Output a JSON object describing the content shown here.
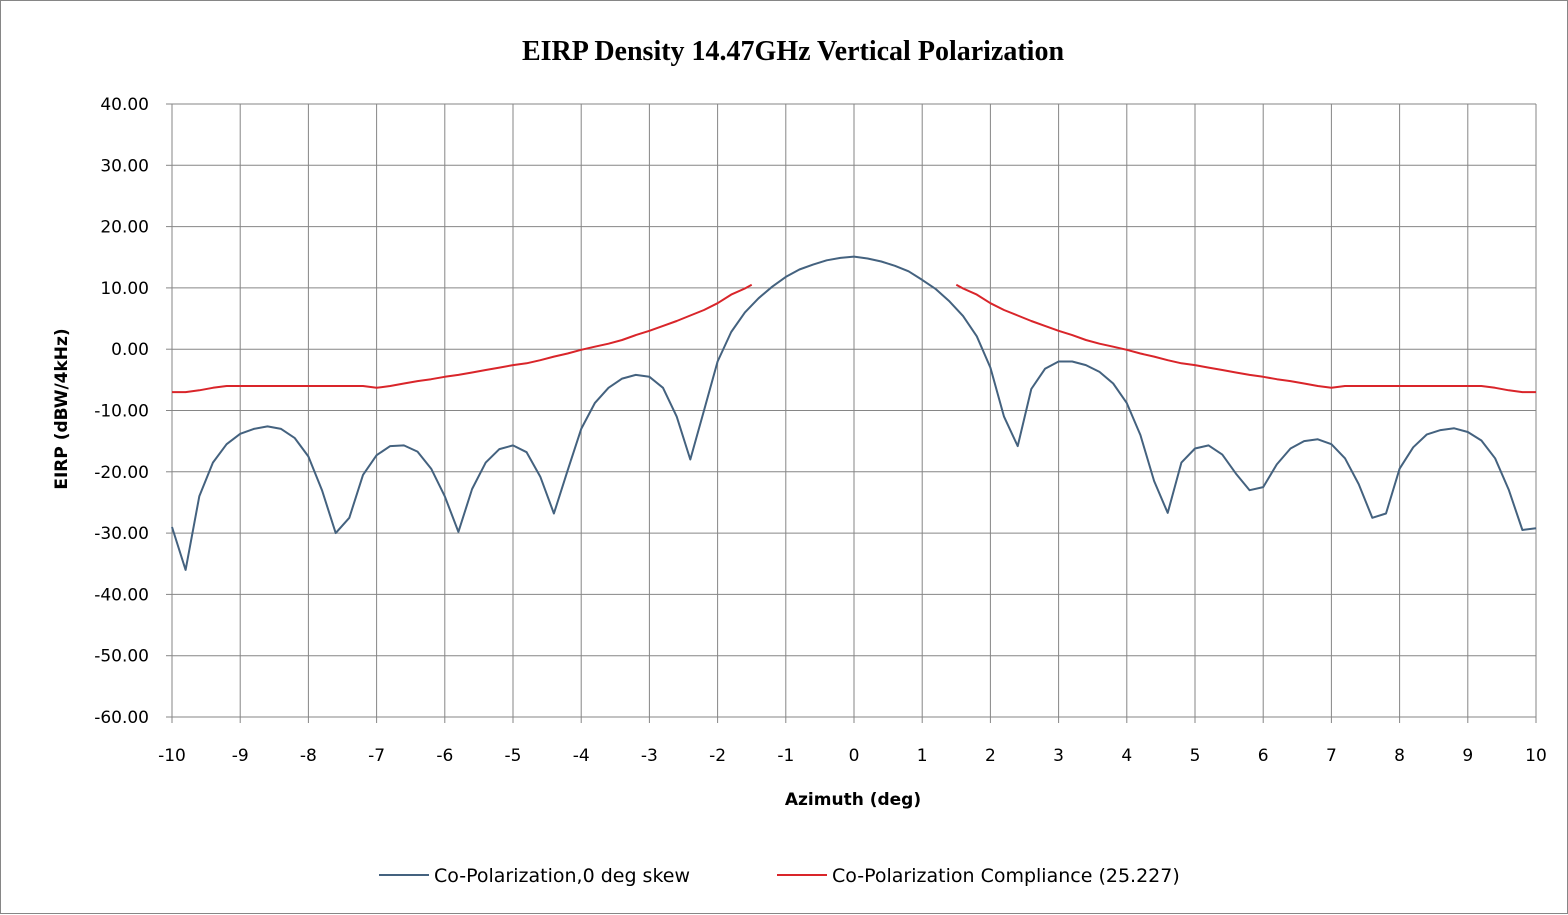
{
  "chart_data": {
    "type": "line",
    "title": "EIRP Density 14.47GHz Vertical Polarization",
    "xlabel": "Azimuth (deg)",
    "ylabel": "EIRP  (dBW/4kHz)",
    "xlim": [
      -10,
      10
    ],
    "ylim": [
      -60,
      40
    ],
    "x_ticks": [
      "-10",
      "-9",
      "-8",
      "-7",
      "-6",
      "-5",
      "-4",
      "-3",
      "-2",
      "-1",
      "0",
      "1",
      "2",
      "3",
      "4",
      "5",
      "6",
      "7",
      "8",
      "9",
      "10"
    ],
    "y_ticks": [
      "40.00",
      "30.00",
      "20.00",
      "10.00",
      "0.00",
      "-10.00",
      "-20.00",
      "-30.00",
      "-40.00",
      "-50.00",
      "-60.00"
    ],
    "grid": true,
    "legend_position": "bottom",
    "series": [
      {
        "name": "Co-Polarization,0 deg skew",
        "color": "#44627f",
        "points": [
          [
            -10.0,
            -29.0
          ],
          [
            -9.8,
            -36.0
          ],
          [
            -9.6,
            -24.0
          ],
          [
            -9.4,
            -18.5
          ],
          [
            -9.2,
            -15.5
          ],
          [
            -9.0,
            -13.8
          ],
          [
            -8.8,
            -13.0
          ],
          [
            -8.6,
            -12.6
          ],
          [
            -8.4,
            -13.0
          ],
          [
            -8.2,
            -14.5
          ],
          [
            -8.0,
            -17.5
          ],
          [
            -7.8,
            -23.0
          ],
          [
            -7.6,
            -30.0
          ],
          [
            -7.4,
            -27.5
          ],
          [
            -7.2,
            -20.5
          ],
          [
            -7.0,
            -17.3
          ],
          [
            -6.8,
            -15.8
          ],
          [
            -6.6,
            -15.7
          ],
          [
            -6.4,
            -16.7
          ],
          [
            -6.2,
            -19.5
          ],
          [
            -6.0,
            -24.0
          ],
          [
            -5.8,
            -29.8
          ],
          [
            -5.6,
            -22.8
          ],
          [
            -5.4,
            -18.5
          ],
          [
            -5.2,
            -16.3
          ],
          [
            -5.0,
            -15.7
          ],
          [
            -4.8,
            -16.8
          ],
          [
            -4.6,
            -20.8
          ],
          [
            -4.4,
            -26.8
          ],
          [
            -4.2,
            -19.8
          ],
          [
            -4.0,
            -13.0
          ],
          [
            -3.8,
            -8.8
          ],
          [
            -3.6,
            -6.3
          ],
          [
            -3.4,
            -4.8
          ],
          [
            -3.2,
            -4.2
          ],
          [
            -3.0,
            -4.5
          ],
          [
            -2.8,
            -6.3
          ],
          [
            -2.6,
            -11.0
          ],
          [
            -2.4,
            -18.0
          ],
          [
            -2.2,
            -10.0
          ],
          [
            -2.0,
            -2.0
          ],
          [
            -1.8,
            2.8
          ],
          [
            -1.6,
            6.0
          ],
          [
            -1.4,
            8.3
          ],
          [
            -1.2,
            10.2
          ],
          [
            -1.0,
            11.8
          ],
          [
            -0.8,
            13.0
          ],
          [
            -0.6,
            13.8
          ],
          [
            -0.4,
            14.5
          ],
          [
            -0.2,
            14.9
          ],
          [
            0.0,
            15.1
          ],
          [
            0.2,
            14.8
          ],
          [
            0.4,
            14.3
          ],
          [
            0.6,
            13.6
          ],
          [
            0.8,
            12.7
          ],
          [
            1.0,
            11.3
          ],
          [
            1.2,
            9.8
          ],
          [
            1.4,
            7.8
          ],
          [
            1.6,
            5.4
          ],
          [
            1.8,
            2.1
          ],
          [
            2.0,
            -3.0
          ],
          [
            2.2,
            -11.0
          ],
          [
            2.4,
            -15.8
          ],
          [
            2.6,
            -6.5
          ],
          [
            2.8,
            -3.2
          ],
          [
            3.0,
            -2.0
          ],
          [
            3.2,
            -2.0
          ],
          [
            3.4,
            -2.6
          ],
          [
            3.6,
            -3.7
          ],
          [
            3.8,
            -5.6
          ],
          [
            4.0,
            -8.8
          ],
          [
            4.2,
            -14.0
          ],
          [
            4.4,
            -21.5
          ],
          [
            4.6,
            -26.7
          ],
          [
            4.8,
            -18.5
          ],
          [
            5.0,
            -16.2
          ],
          [
            5.2,
            -15.7
          ],
          [
            5.4,
            -17.2
          ],
          [
            5.6,
            -20.3
          ],
          [
            5.8,
            -23.0
          ],
          [
            6.0,
            -22.5
          ],
          [
            6.2,
            -18.8
          ],
          [
            6.4,
            -16.2
          ],
          [
            6.6,
            -15.0
          ],
          [
            6.8,
            -14.7
          ],
          [
            7.0,
            -15.5
          ],
          [
            7.2,
            -17.8
          ],
          [
            7.4,
            -22.0
          ],
          [
            7.6,
            -27.5
          ],
          [
            7.8,
            -26.8
          ],
          [
            8.0,
            -19.5
          ],
          [
            8.2,
            -16.0
          ],
          [
            8.4,
            -13.9
          ],
          [
            8.6,
            -13.2
          ],
          [
            8.8,
            -12.9
          ],
          [
            9.0,
            -13.5
          ],
          [
            9.2,
            -14.9
          ],
          [
            9.4,
            -17.8
          ],
          [
            9.6,
            -22.9
          ],
          [
            9.8,
            -29.5
          ],
          [
            10.0,
            -29.2
          ]
        ]
      },
      {
        "name": "Co-Polarization Compliance (25.227)",
        "color": "#d9252a",
        "segments": [
          [
            [
              -10.0,
              -7.0
            ],
            [
              -9.8,
              -7.0
            ],
            [
              -9.6,
              -6.7
            ],
            [
              -9.4,
              -6.3
            ],
            [
              -9.2,
              -6.0
            ],
            [
              -9.0,
              -6.0
            ],
            [
              -8.0,
              -6.0
            ],
            [
              -7.2,
              -6.0
            ],
            [
              -7.0,
              -6.3
            ],
            [
              -6.8,
              -6.0
            ],
            [
              -6.6,
              -5.6
            ],
            [
              -6.4,
              -5.2
            ],
            [
              -6.2,
              -4.9
            ],
            [
              -6.0,
              -4.5
            ],
            [
              -5.8,
              -4.2
            ],
            [
              -5.6,
              -3.8
            ],
            [
              -5.4,
              -3.4
            ],
            [
              -5.2,
              -3.0
            ],
            [
              -5.0,
              -2.6
            ],
            [
              -4.8,
              -2.3
            ],
            [
              -4.6,
              -1.8
            ],
            [
              -4.4,
              -1.2
            ],
            [
              -4.2,
              -0.7
            ],
            [
              -4.0,
              -0.1
            ],
            [
              -3.8,
              0.4
            ],
            [
              -3.6,
              0.9
            ],
            [
              -3.4,
              1.5
            ],
            [
              -3.2,
              2.3
            ],
            [
              -3.0,
              3.0
            ],
            [
              -2.8,
              3.8
            ],
            [
              -2.6,
              4.6
            ],
            [
              -2.4,
              5.5
            ],
            [
              -2.2,
              6.4
            ],
            [
              -2.0,
              7.5
            ],
            [
              -1.8,
              8.9
            ],
            [
              -1.6,
              9.9
            ],
            [
              -1.5,
              10.5
            ]
          ],
          [
            [
              1.5,
              10.5
            ],
            [
              1.6,
              9.9
            ],
            [
              1.8,
              8.9
            ],
            [
              2.0,
              7.5
            ],
            [
              2.2,
              6.4
            ],
            [
              2.4,
              5.5
            ],
            [
              2.6,
              4.6
            ],
            [
              2.8,
              3.8
            ],
            [
              3.0,
              3.0
            ],
            [
              3.2,
              2.3
            ],
            [
              3.4,
              1.5
            ],
            [
              3.6,
              0.9
            ],
            [
              3.8,
              0.4
            ],
            [
              4.0,
              -0.1
            ],
            [
              4.2,
              -0.7
            ],
            [
              4.4,
              -1.2
            ],
            [
              4.6,
              -1.8
            ],
            [
              4.8,
              -2.3
            ],
            [
              5.0,
              -2.6
            ],
            [
              5.2,
              -3.0
            ],
            [
              5.4,
              -3.4
            ],
            [
              5.6,
              -3.8
            ],
            [
              5.8,
              -4.2
            ],
            [
              6.0,
              -4.5
            ],
            [
              6.2,
              -4.9
            ],
            [
              6.4,
              -5.2
            ],
            [
              6.6,
              -5.6
            ],
            [
              6.8,
              -6.0
            ],
            [
              7.0,
              -6.3
            ],
            [
              7.2,
              -6.0
            ],
            [
              8.0,
              -6.0
            ],
            [
              9.0,
              -6.0
            ],
            [
              9.2,
              -6.0
            ],
            [
              9.4,
              -6.3
            ],
            [
              9.6,
              -6.7
            ],
            [
              9.8,
              -7.0
            ],
            [
              10.0,
              -7.0
            ]
          ]
        ]
      }
    ]
  }
}
